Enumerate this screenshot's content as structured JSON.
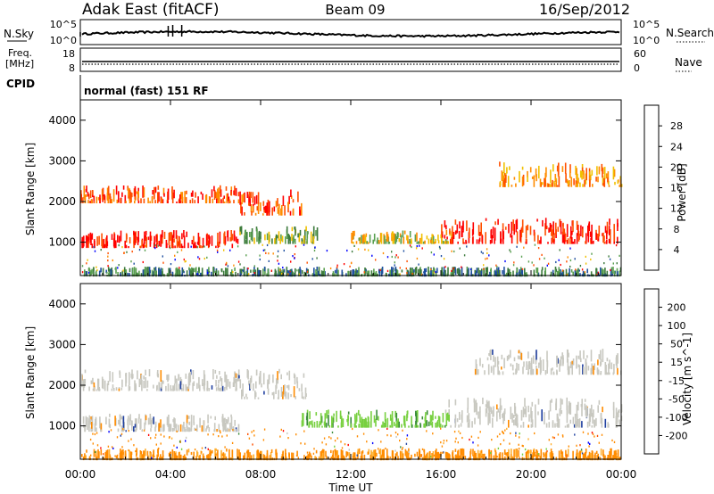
{
  "header": {
    "station": "Adak East (fitACF)",
    "beam": "Beam 09",
    "date": "16/Sep/2012"
  },
  "panels": {
    "nsky_label": "N.Sky",
    "nsearch_label": "N.Search",
    "nsky_ticks": [
      "10^5",
      "10^0"
    ],
    "nsky_right_ticks": [
      "10^5",
      "10^0"
    ],
    "freq_label_1": "Freq.",
    "freq_label_2": "[MHz]",
    "freq_ticks": [
      "18",
      "8"
    ],
    "nave_label": "Nave",
    "nave_ticks": [
      "60",
      "0"
    ],
    "cpid_label": "CPID",
    "cpid_text": "normal (fast) 151 RF"
  },
  "colors": {
    "power_scale": [
      "#0000ff",
      "#1f4fa0",
      "#3c7a3c",
      "#5aa050",
      "#f0c000",
      "#ff8c00",
      "#ff5000",
      "#ff0000"
    ],
    "velocity_scale": [
      "#ff0000",
      "#ff5000",
      "#ff8c00",
      "#ffb030",
      "#c8c8c0",
      "#78d040",
      "#3c8c3c",
      "#2040a0",
      "#0000ff"
    ],
    "ground_scatter": "#c8c8c0"
  },
  "chart_data": [
    {
      "type": "heatmap",
      "quantity": "power",
      "ylabel": "Slant Range [km]",
      "yticks": [
        "4000",
        "3000",
        "2000",
        "1000"
      ],
      "ylim": [
        180,
        4500
      ],
      "xlim": [
        "00:00",
        "24:00"
      ],
      "colorbar_label": "Power [dB]",
      "colorbar_ticks": [
        "28",
        "24",
        "20",
        "16",
        "12",
        "8",
        "4"
      ],
      "colorbar_range": [
        0,
        32
      ],
      "bands": [
        {
          "t_start": 0.0,
          "t_end": 7.0,
          "range_low": 900,
          "range_high": 1300,
          "power": 28
        },
        {
          "t_start": 0.0,
          "t_end": 7.0,
          "range_low": 2000,
          "range_high": 2400,
          "power": 26
        },
        {
          "t_start": 7.0,
          "t_end": 9.8,
          "range_low": 1700,
          "range_high": 2300,
          "power": 24
        },
        {
          "t_start": 7.0,
          "t_end": 10.5,
          "range_low": 1000,
          "range_high": 1400,
          "power": 14
        },
        {
          "t_start": 12.0,
          "t_end": 16.5,
          "range_low": 1000,
          "range_high": 1300,
          "power": 18
        },
        {
          "t_start": 16.0,
          "t_end": 24.0,
          "range_low": 1000,
          "range_high": 1600,
          "power": 28
        },
        {
          "t_start": 18.5,
          "t_end": 24.0,
          "range_low": 2400,
          "range_high": 3000,
          "power": 20
        },
        {
          "t_start": 0.0,
          "t_end": 24.0,
          "range_low": 200,
          "range_high": 400,
          "power": 10
        }
      ]
    },
    {
      "type": "heatmap",
      "quantity": "velocity",
      "ylabel": "Slant Range [km]",
      "yticks": [
        "4000",
        "3000",
        "2000",
        "1000"
      ],
      "ylim": [
        180,
        4500
      ],
      "xlabel": "Time UT",
      "xticks": [
        "00:00",
        "04:00",
        "08:00",
        "12:00",
        "16:00",
        "20:00",
        "00:00"
      ],
      "xlim": [
        "00:00",
        "24:00"
      ],
      "colorbar_label": "Velocity [m s^-1]",
      "colorbar_ticks": [
        "200",
        "100",
        "50",
        "15",
        "-15",
        "-50",
        "-100",
        "-200"
      ],
      "bands": [
        {
          "t_start": 0.0,
          "t_end": 7.0,
          "range_low": 900,
          "range_high": 1300,
          "velocity": 0,
          "ground_scatter": true
        },
        {
          "t_start": 0.0,
          "t_end": 7.0,
          "range_low": 1900,
          "range_high": 2400,
          "velocity": 0,
          "ground_scatter": true
        },
        {
          "t_start": 7.0,
          "t_end": 10.0,
          "range_low": 1700,
          "range_high": 2400,
          "velocity": 0,
          "ground_scatter": true
        },
        {
          "t_start": 9.8,
          "t_end": 16.5,
          "range_low": 1000,
          "range_high": 1400,
          "velocity": 40
        },
        {
          "t_start": 16.0,
          "t_end": 24.0,
          "range_low": 1000,
          "range_high": 1700,
          "velocity": 0,
          "ground_scatter": true
        },
        {
          "t_start": 17.5,
          "t_end": 24.0,
          "range_low": 2300,
          "range_high": 2900,
          "velocity": 0,
          "ground_scatter": true
        },
        {
          "t_start": 0.0,
          "t_end": 24.0,
          "range_low": 200,
          "range_high": 450,
          "velocity": -40
        }
      ]
    }
  ]
}
